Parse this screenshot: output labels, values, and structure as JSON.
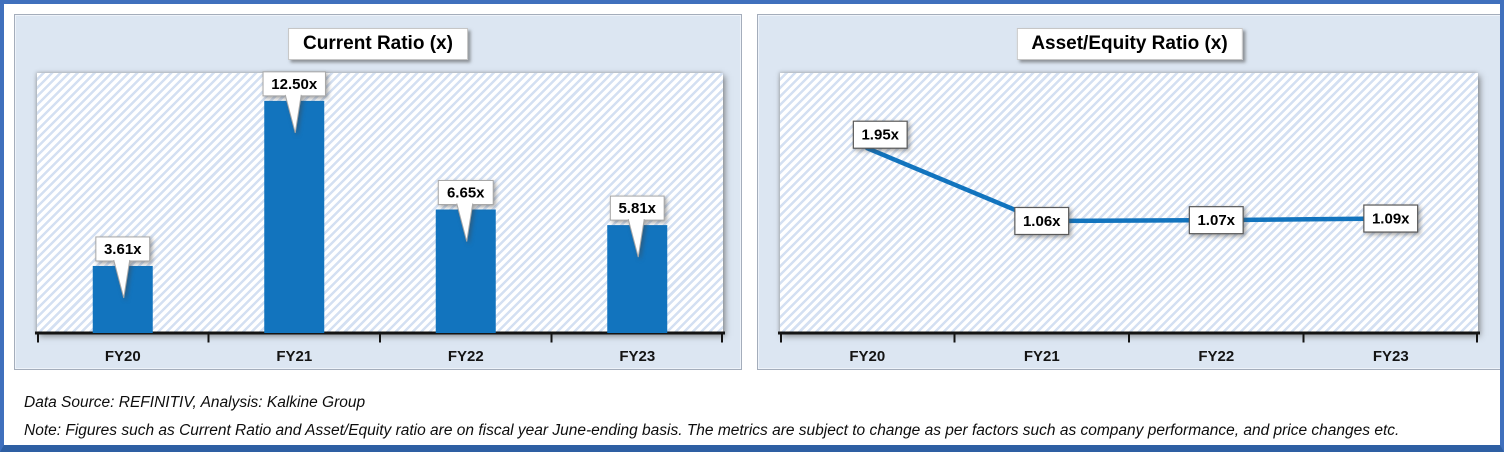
{
  "chart_data": [
    {
      "type": "bar",
      "title": "Current Ratio (x)",
      "categories": [
        "FY20",
        "FY21",
        "FY22",
        "FY23"
      ],
      "values": [
        3.61,
        12.5,
        6.65,
        5.81
      ],
      "labels": [
        "3.61x",
        "12.50x",
        "6.65x",
        "5.81x"
      ],
      "ylim": [
        0,
        14
      ],
      "grid": "off",
      "legend": "none",
      "bar_color": "#1274be",
      "plot_fill": "diagonal-hatch-light-blue"
    },
    {
      "type": "line",
      "title": "Asset/Equity Ratio (x)",
      "categories": [
        "FY20",
        "FY21",
        "FY22",
        "FY23"
      ],
      "values": [
        1.95,
        1.06,
        1.07,
        1.09
      ],
      "labels": [
        "1.95x",
        "1.06x",
        "1.07x",
        "1.09x"
      ],
      "ylim": [
        -0.31,
        2.87
      ],
      "grid": "off",
      "legend": "none",
      "line_color": "#1274be",
      "plot_fill": "diagonal-hatch-light-blue"
    }
  ],
  "footer": {
    "source": "Data Source: REFINITIV, Analysis: Kalkine Group",
    "note": "Note: Figures such as Current Ratio and Asset/Equity ratio are on fiscal year June-ending basis. The metrics are subject to change as per factors such as company performance, and price changes etc."
  },
  "colors": {
    "accent_blue": "#1274be",
    "panel_background": "#dce6f2",
    "hatch_stripe": "#d4e0f2",
    "frame_border": "#4070bd",
    "frame_border_bottom": "#2e5fa3"
  }
}
